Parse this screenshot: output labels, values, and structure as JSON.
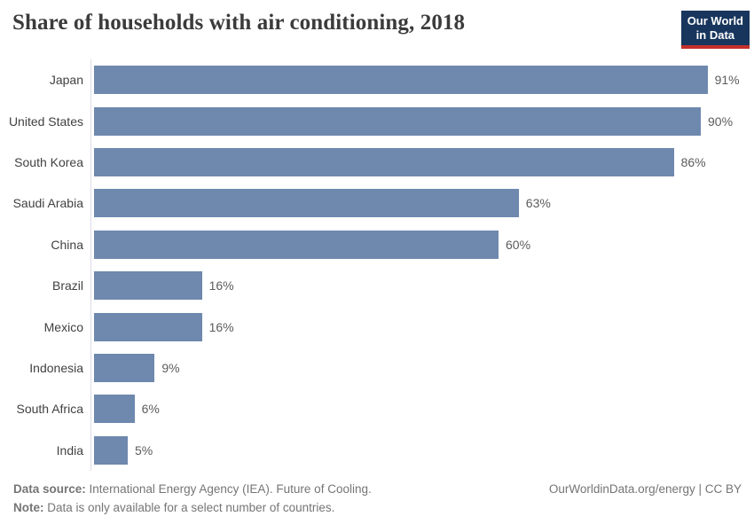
{
  "header": {
    "title": "Share of households with air conditioning, 2018",
    "logo": {
      "line1": "Our World",
      "line2": "in Data"
    }
  },
  "chart_data": {
    "type": "bar",
    "orientation": "horizontal",
    "title": "Share of households with air conditioning, 2018",
    "categories": [
      "Japan",
      "United States",
      "South Korea",
      "Saudi Arabia",
      "China",
      "Brazil",
      "Mexico",
      "Indonesia",
      "South Africa",
      "India"
    ],
    "values": [
      91,
      90,
      86,
      63,
      60,
      16,
      16,
      9,
      6,
      5
    ],
    "value_labels": [
      "91%",
      "90%",
      "86%",
      "63%",
      "60%",
      "16%",
      "16%",
      "9%",
      "6%",
      "5%"
    ],
    "unit": "%",
    "xlim": [
      0,
      97
    ],
    "grid": false,
    "legend": "none",
    "data_labels": "outside-end",
    "bar_color": "#6e88ae"
  },
  "footer": {
    "source_label": "Data source:",
    "source_text": "International Energy Agency (IEA). Future of Cooling.",
    "note_label": "Note:",
    "note_text": "Data is only available for a select number of countries.",
    "credit": "OurWorldinData.org/energy | CC BY"
  },
  "colors": {
    "bar": "#6e88ae",
    "axis_line": "#dcdce6",
    "logo_background": "#18365d",
    "logo_accent": "#c5302b",
    "title_text": "#3b3b3b",
    "category_text": "#414141",
    "value_text": "#5c5c5c",
    "footer_text": "#757575"
  }
}
